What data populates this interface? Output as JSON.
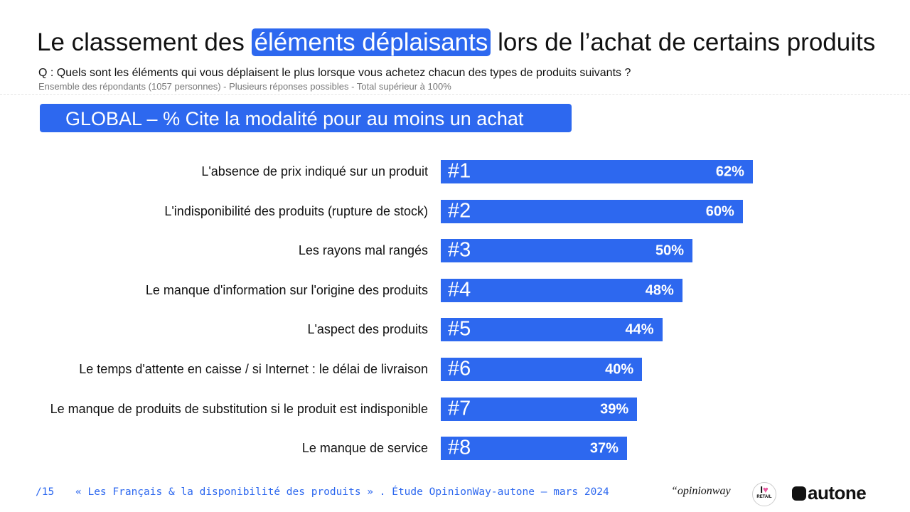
{
  "chart_data": {
    "type": "bar",
    "title": [
      "Le classement des",
      "éléments déplaisants",
      "lors de l’achat de certains produits"
    ],
    "question": "Q :  Quels sont les éléments qui vous déplaisent le plus lorsque vous achetez chacun des types de produits suivants ?",
    "note": "Ensemble des répondants (1057 personnes) - Plusieurs réponses possibles - Total supérieur à 100%",
    "subtitle": "GLOBAL – % Cite la modalité pour au moins un achat",
    "categories": [
      "L'absence de prix indiqué sur un produit",
      "L'indisponibilité des produits (rupture de stock)",
      "Les rayons mal rangés",
      "Le manque d'information sur l'origine des produits",
      "L'aspect des produits",
      "Le temps d'attente en caisse / si Internet : le délai de livraison",
      "Le manque de produits de substitution si le produit est indisponible",
      "Le manque de service"
    ],
    "ranks": [
      "#1",
      "#2",
      "#3",
      "#4",
      "#5",
      "#6",
      "#7",
      "#8"
    ],
    "values": [
      62,
      60,
      50,
      48,
      44,
      40,
      39,
      37
    ],
    "value_labels": [
      "62%",
      "60%",
      "50%",
      "48%",
      "44%",
      "40%",
      "39%",
      "37%"
    ],
    "color": "#2d68ef"
  },
  "footer": {
    "page": "/15",
    "source": "« Les Français & la disponibilité des produits » . Étude OpinionWay-autone – mars 2024",
    "logos": [
      "“opinionway",
      "I",
      "RETAIL",
      "autone"
    ]
  }
}
